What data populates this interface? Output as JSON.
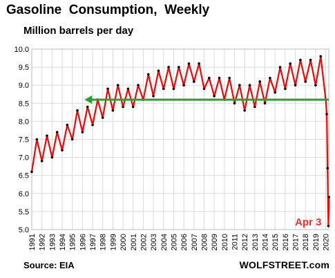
{
  "header": {
    "title": "Gasoline  Consumption,  Weekly",
    "subtitle": "Million barrels per day"
  },
  "footer": {
    "source": "Source: EIA",
    "brand": "WOLFSTREET.com"
  },
  "chart_data": {
    "type": "line",
    "title": "Gasoline  Consumption,  Weekly",
    "ylabel": "Million barrels per day",
    "xlim": [
      1991.0,
      2020.3
    ],
    "ylim": [
      5.0,
      10.0
    ],
    "yticks": [
      5.0,
      5.5,
      6.0,
      6.5,
      7.0,
      7.5,
      8.0,
      8.5,
      9.0,
      9.5,
      10.0
    ],
    "xticks": [
      1991,
      1992,
      1993,
      1994,
      1995,
      1996,
      1997,
      1998,
      1999,
      2000,
      2001,
      2002,
      2003,
      2004,
      2005,
      2006,
      2007,
      2008,
      2009,
      2010,
      2011,
      2012,
      2013,
      2014,
      2015,
      2016,
      2017,
      2018,
      2019,
      2020
    ],
    "grid": true,
    "colors": {
      "line": "#ff0000",
      "markers": "#000000",
      "reference": "#2ca02c",
      "annotation": "#ff2a2a",
      "grid": "#d9d9d9"
    },
    "series": [
      {
        "x": [
          1991.0,
          1991.5,
          1992.0,
          1992.5,
          1993.0,
          1993.5,
          1994.0,
          1994.5,
          1995.0,
          1995.5,
          1996.0,
          1996.5,
          1997.0,
          1997.5,
          1998.0,
          1998.5,
          1999.0,
          1999.5,
          2000.0,
          2000.5,
          2001.0,
          2001.5,
          2002.0,
          2002.5,
          2003.0,
          2003.5,
          2004.0,
          2004.5,
          2005.0,
          2005.5,
          2006.0,
          2006.5,
          2007.0,
          2007.5,
          2008.0,
          2008.5,
          2009.0,
          2009.5,
          2010.0,
          2010.5,
          2011.0,
          2011.5,
          2012.0,
          2012.5,
          2013.0,
          2013.5,
          2014.0,
          2014.5,
          2015.0,
          2015.5,
          2016.0,
          2016.5,
          2017.0,
          2017.5,
          2018.0,
          2018.5,
          2019.0,
          2019.5,
          2020.0,
          2020.1,
          2020.18,
          2020.26,
          2020.32
        ],
        "y": [
          6.6,
          7.5,
          6.9,
          7.6,
          7.0,
          7.7,
          7.2,
          7.9,
          7.5,
          8.3,
          7.7,
          8.4,
          7.9,
          8.6,
          8.1,
          8.9,
          8.3,
          9.0,
          8.4,
          8.9,
          8.4,
          9.0,
          8.6,
          9.3,
          8.7,
          9.4,
          8.9,
          9.5,
          8.9,
          9.5,
          9.0,
          9.6,
          9.1,
          9.6,
          8.9,
          9.2,
          8.7,
          9.2,
          8.6,
          9.2,
          8.5,
          9.0,
          8.3,
          9.0,
          8.4,
          9.1,
          8.5,
          9.2,
          8.8,
          9.5,
          8.9,
          9.6,
          9.0,
          9.7,
          9.1,
          9.7,
          9.0,
          9.8,
          8.6,
          8.2,
          6.7,
          5.1,
          5.9
        ]
      }
    ],
    "reference_line": {
      "y": 8.6,
      "x_from": 1996.2,
      "x_to": 2020.3
    },
    "annotations": [
      {
        "text": "Apr 3",
        "x": 2020.26,
        "y": 5.1
      }
    ]
  }
}
